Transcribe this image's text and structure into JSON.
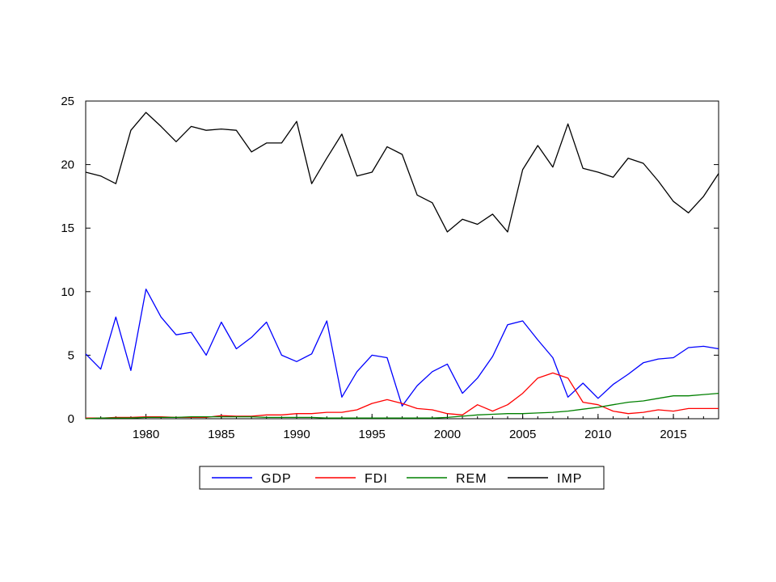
{
  "chart_data": {
    "type": "line",
    "title": "",
    "xlabel": "",
    "ylabel": "",
    "xlim": [
      1976,
      2018
    ],
    "ylim": [
      0,
      25
    ],
    "xticks": [
      1980,
      1985,
      1990,
      1995,
      2000,
      2005,
      2010,
      2015
    ],
    "yticks": [
      0,
      5,
      10,
      15,
      20,
      25
    ],
    "grid": false,
    "legend_position": "bottom",
    "x": [
      1976,
      1977,
      1978,
      1979,
      1980,
      1981,
      1982,
      1983,
      1984,
      1985,
      1986,
      1987,
      1988,
      1989,
      1990,
      1991,
      1992,
      1993,
      1994,
      1995,
      1996,
      1997,
      1998,
      1999,
      2000,
      2001,
      2002,
      2003,
      2004,
      2005,
      2006,
      2007,
      2008,
      2009,
      2010,
      2011,
      2012,
      2013,
      2014,
      2015,
      2016,
      2017,
      2018
    ],
    "series": [
      {
        "name": "GDP",
        "color": "#0000ff",
        "values": [
          5.1,
          3.9,
          8.0,
          3.8,
          10.2,
          8.0,
          6.6,
          6.8,
          5.0,
          7.6,
          5.5,
          6.4,
          7.6,
          5.0,
          4.5,
          5.1,
          7.7,
          1.7,
          3.7,
          5.0,
          4.8,
          1.0,
          2.6,
          3.7,
          4.3,
          2.0,
          3.2,
          4.9,
          7.4,
          7.7,
          6.2,
          4.8,
          1.7,
          2.8,
          1.6,
          2.7,
          3.5,
          4.4,
          4.7,
          4.8,
          5.6,
          5.7,
          5.5
        ]
      },
      {
        "name": "FDI",
        "color": "#ff0000",
        "values": [
          0.05,
          0.05,
          0.1,
          0.1,
          0.15,
          0.15,
          0.1,
          0.1,
          0.1,
          0.25,
          0.2,
          0.2,
          0.3,
          0.3,
          0.4,
          0.4,
          0.5,
          0.5,
          0.7,
          1.2,
          1.5,
          1.2,
          0.8,
          0.7,
          0.4,
          0.3,
          1.1,
          0.6,
          1.1,
          2.0,
          3.2,
          3.6,
          3.2,
          1.3,
          1.1,
          0.6,
          0.4,
          0.5,
          0.7,
          0.6,
          0.8,
          0.8,
          0.8
        ]
      },
      {
        "name": "REM",
        "color": "#008000",
        "values": [
          0.0,
          0.05,
          0.05,
          0.05,
          0.1,
          0.1,
          0.1,
          0.15,
          0.15,
          0.15,
          0.15,
          0.15,
          0.1,
          0.1,
          0.1,
          0.1,
          0.05,
          0.05,
          0.05,
          0.05,
          0.05,
          0.05,
          0.05,
          0.05,
          0.1,
          0.2,
          0.3,
          0.35,
          0.4,
          0.4,
          0.45,
          0.5,
          0.6,
          0.75,
          0.9,
          1.1,
          1.3,
          1.4,
          1.6,
          1.8,
          1.8,
          1.9,
          2.0
        ]
      },
      {
        "name": "IMP",
        "color": "#000000",
        "values": [
          19.4,
          19.1,
          18.5,
          22.7,
          24.1,
          23.0,
          21.8,
          23.0,
          22.7,
          22.8,
          22.7,
          21.0,
          21.7,
          21.7,
          23.4,
          18.5,
          20.5,
          22.4,
          19.1,
          19.4,
          21.4,
          20.8,
          17.6,
          17.0,
          14.7,
          15.7,
          15.3,
          16.1,
          14.7,
          19.6,
          21.5,
          19.8,
          23.2,
          19.7,
          19.4,
          19.0,
          20.5,
          20.1,
          18.7,
          17.1,
          16.2,
          17.5,
          19.3
        ]
      }
    ]
  }
}
